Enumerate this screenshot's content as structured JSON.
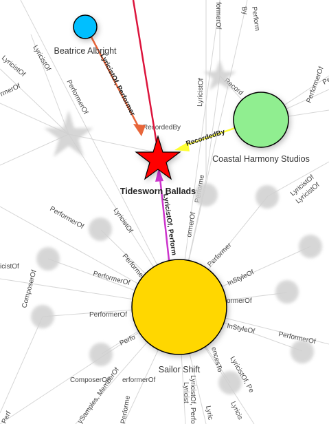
{
  "nodes": {
    "beatrice": {
      "label": "Beatrice Albright",
      "color": "#00bfff"
    },
    "coastal": {
      "label": "Coastal Harmony Studios",
      "color": "#90ee90"
    },
    "tidesworn": {
      "label": "Tidesworn Ballads",
      "color": "#ff0000"
    },
    "sailor": {
      "label": "Sailor Shift",
      "color": "#ffd700"
    }
  },
  "edges": {
    "beatrice_tidesworn": {
      "label": "LyricistOf, Performer",
      "color": "#e8663a"
    },
    "coastal_tidesworn": {
      "label": "RecordedBy",
      "color": "#ffff33"
    },
    "sailor_tidesworn": {
      "label": "LyricistOf, Perform",
      "color": "#cc33cc"
    },
    "top_red": {
      "color": "#dc143c"
    }
  },
  "faint_labels": [
    "formerOf",
    "By",
    "Perform",
    "LyricistOf",
    "LyricistOf",
    "rmerOf",
    "PerformerOf",
    "LyricistOf",
    "Record",
    "PerformerOf",
    "Performe",
    "RecordedBy",
    "LyricistOf",
    "LyricistOf",
    "PerformerOf",
    "Performe",
    "LyricistOf",
    "Performer",
    "ormerOf",
    "icistOf",
    "Performer",
    "ComposerOf",
    "PerformerOf",
    "InStyleOf",
    "PerformerOf",
    "ormerOf",
    "InStyleOf",
    "PerformerOf",
    "Perfo",
    "ComposerOf",
    "erformerOf",
    "encesTo",
    "LyricistOf, Pe",
    "LyricistOf, Perfor",
    "Lyricis",
    "Lyric",
    "ySamples, MemberOf",
    "Performe",
    "Lyricist",
    "Perf"
  ]
}
